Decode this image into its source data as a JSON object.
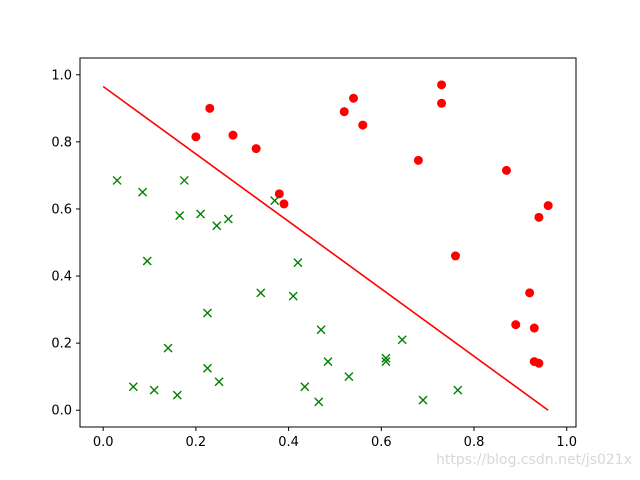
{
  "chart_data": {
    "type": "scatter",
    "title": "",
    "xlabel": "",
    "ylabel": "",
    "xlim": [
      -0.05,
      1.02
    ],
    "ylim": [
      -0.05,
      1.05
    ],
    "grid": false,
    "x_ticks": [
      "0.0",
      "0.2",
      "0.4",
      "0.6",
      "0.8",
      "1.0"
    ],
    "y_ticks": [
      "0.0",
      "0.2",
      "0.4",
      "0.6",
      "0.8",
      "1.0"
    ],
    "series": [
      {
        "marker": "circle",
        "color": "#ff0000",
        "points": [
          [
            0.2,
            0.815
          ],
          [
            0.23,
            0.9
          ],
          [
            0.28,
            0.82
          ],
          [
            0.33,
            0.78
          ],
          [
            0.38,
            0.645
          ],
          [
            0.39,
            0.615
          ],
          [
            0.52,
            0.89
          ],
          [
            0.54,
            0.93
          ],
          [
            0.56,
            0.85
          ],
          [
            0.68,
            0.745
          ],
          [
            0.73,
            0.97
          ],
          [
            0.73,
            0.915
          ],
          [
            0.76,
            0.46
          ],
          [
            0.87,
            0.715
          ],
          [
            0.89,
            0.255
          ],
          [
            0.92,
            0.35
          ],
          [
            0.93,
            0.245
          ],
          [
            0.93,
            0.145
          ],
          [
            0.94,
            0.14
          ],
          [
            0.94,
            0.575
          ],
          [
            0.96,
            0.61
          ]
        ]
      },
      {
        "marker": "x",
        "color": "#008000",
        "points": [
          [
            0.03,
            0.685
          ],
          [
            0.065,
            0.07
          ],
          [
            0.085,
            0.65
          ],
          [
            0.095,
            0.445
          ],
          [
            0.11,
            0.06
          ],
          [
            0.14,
            0.185
          ],
          [
            0.16,
            0.045
          ],
          [
            0.165,
            0.58
          ],
          [
            0.175,
            0.685
          ],
          [
            0.21,
            0.585
          ],
          [
            0.225,
            0.29
          ],
          [
            0.225,
            0.125
          ],
          [
            0.245,
            0.55
          ],
          [
            0.25,
            0.085
          ],
          [
            0.27,
            0.57
          ],
          [
            0.34,
            0.35
          ],
          [
            0.37,
            0.625
          ],
          [
            0.41,
            0.34
          ],
          [
            0.42,
            0.44
          ],
          [
            0.435,
            0.07
          ],
          [
            0.465,
            0.025
          ],
          [
            0.47,
            0.24
          ],
          [
            0.485,
            0.145
          ],
          [
            0.53,
            0.1
          ],
          [
            0.61,
            0.155
          ],
          [
            0.61,
            0.145
          ],
          [
            0.645,
            0.21
          ],
          [
            0.69,
            0.03
          ],
          [
            0.765,
            0.06
          ]
        ]
      }
    ],
    "line": {
      "color": "#ff0000",
      "points": [
        [
          0.0,
          0.965
        ],
        [
          0.96,
          0.0
        ]
      ]
    }
  },
  "watermark": "https://blog.csdn.net/js021x"
}
